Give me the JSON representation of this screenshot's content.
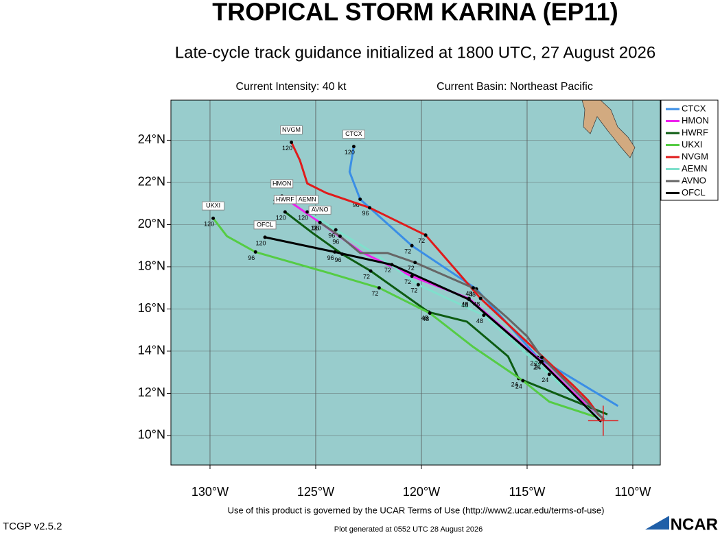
{
  "chart_data": {
    "type": "line",
    "title": "TROPICAL STORM KARINA (EP11)",
    "subtitle": "Late-cycle track guidance initialized at 1800 UTC, 27 August 2026",
    "intensity": "Current Intensity: 40 kt",
    "basin": "Current Basin: Northeast Pacific",
    "terms": "Use of this product is governed by the UCAR Terms of Use (http://www2.ucar.edu/terms-of-use)",
    "version": "TCGP v2.5.2",
    "generated": "Plot generated at 0552 UTC  28 August 2026",
    "logo": "NCAR",
    "xlim": [
      -131.85,
      -108.7
    ],
    "ylim": [
      8.6,
      25.9
    ],
    "xticks": [
      {
        "value": -130,
        "label": "130°W"
      },
      {
        "value": -125,
        "label": "125°W"
      },
      {
        "value": -120,
        "label": "120°W"
      },
      {
        "value": -115,
        "label": "115°W"
      },
      {
        "value": -110,
        "label": "110°W"
      }
    ],
    "yticks": [
      {
        "value": 10,
        "label": "10°N"
      },
      {
        "value": 12,
        "label": "12°N"
      },
      {
        "value": 14,
        "label": "14°N"
      },
      {
        "value": 16,
        "label": "16°N"
      },
      {
        "value": 18,
        "label": "18°N"
      },
      {
        "value": 20,
        "label": "20°N"
      },
      {
        "value": 22,
        "label": "22°N"
      },
      {
        "value": 24,
        "label": "24°N"
      }
    ],
    "grid": true,
    "legend": "top-right",
    "current_position": {
      "x": -111.4,
      "y": 10.7
    },
    "series": [
      {
        "name": "CTCX",
        "color": "#3a8ee6",
        "x": [
          -110.7,
          -114.5,
          -117.4,
          -120.45,
          -122.9,
          -123.4,
          -123.2
        ],
        "values": [
          11.4,
          13.7,
          16.95,
          19.0,
          21.2,
          22.5,
          23.7
        ],
        "hours": [
          null,
          24,
          48,
          72,
          96,
          null,
          120
        ]
      },
      {
        "name": "HMON",
        "color": "#ee22ee",
        "x": [
          -111.5,
          -114.3,
          -117.75,
          -120.45,
          -122.85,
          -124.8,
          -126.6
        ],
        "values": [
          10.75,
          13.5,
          16.5,
          17.55,
          18.7,
          20.1,
          21.35
        ],
        "hours": [
          null,
          24,
          48,
          72,
          null,
          96,
          120
        ]
      },
      {
        "name": "HWRF",
        "color": "#0d5c12",
        "x": [
          -111.2,
          -115.4,
          -115.9,
          -117.85,
          -119.65,
          -122.4,
          -123.75,
          -125.15,
          -126.45
        ],
        "values": [
          11.0,
          12.7,
          13.75,
          15.4,
          15.85,
          17.8,
          18.6,
          19.6,
          20.6
        ],
        "hours": [
          null,
          24,
          null,
          null,
          48,
          72,
          96,
          null,
          120
        ]
      },
      {
        "name": "UKXI",
        "color": "#55cc44",
        "x": [
          -111.8,
          -113.95,
          -115.2,
          -117.55,
          -119.6,
          -122.0,
          -124.35,
          -127.85,
          -129.2,
          -129.85
        ],
        "values": [
          10.9,
          11.6,
          12.6,
          14.2,
          15.8,
          17.0,
          17.7,
          18.7,
          19.45,
          20.3
        ],
        "hours": [
          null,
          null,
          24,
          null,
          48,
          72,
          null,
          96,
          null,
          120
        ]
      },
      {
        "name": "NVGM",
        "color": "#e01b1b",
        "x": [
          -111.45,
          -112.1,
          -112.85,
          -117.2,
          -119.8,
          -122.45,
          -124.5,
          -125.4,
          -125.75,
          -126.15
        ],
        "values": [
          10.75,
          11.65,
          12.4,
          16.5,
          19.5,
          20.8,
          21.5,
          21.95,
          23.05,
          23.9
        ],
        "hours": [
          null,
          null,
          null,
          48,
          72,
          96,
          null,
          null,
          null,
          120
        ]
      },
      {
        "name": "AEMN",
        "color": "#7fe0cc",
        "x": [
          -111.5,
          -113.95,
          -117.05,
          -120.15,
          -122.25,
          -124.05,
          -125.4
        ],
        "values": [
          10.75,
          12.9,
          15.7,
          17.15,
          18.65,
          19.75,
          20.6
        ],
        "hours": [
          null,
          24,
          48,
          72,
          null,
          96,
          120
        ]
      },
      {
        "name": "AVNO",
        "color": "#666666",
        "x": [
          -111.35,
          -114.3,
          -115.0,
          -115.9,
          -117.55,
          -120.3,
          -121.6,
          -122.9,
          -123.85,
          -124.8
        ],
        "values": [
          10.75,
          13.7,
          14.7,
          15.55,
          17.0,
          18.2,
          18.65,
          18.65,
          19.45,
          20.1
        ],
        "hours": [
          null,
          24,
          null,
          null,
          48,
          72,
          null,
          null,
          96,
          120
        ]
      },
      {
        "name": "OFCL",
        "color": "#000000",
        "x": [
          -111.5,
          -114.35,
          -117.75,
          -121.4,
          -124.1,
          -127.4
        ],
        "values": [
          10.65,
          13.5,
          16.45,
          18.1,
          18.7,
          19.4
        ],
        "hours": [
          null,
          24,
          48,
          72,
          96,
          120
        ]
      }
    ]
  }
}
